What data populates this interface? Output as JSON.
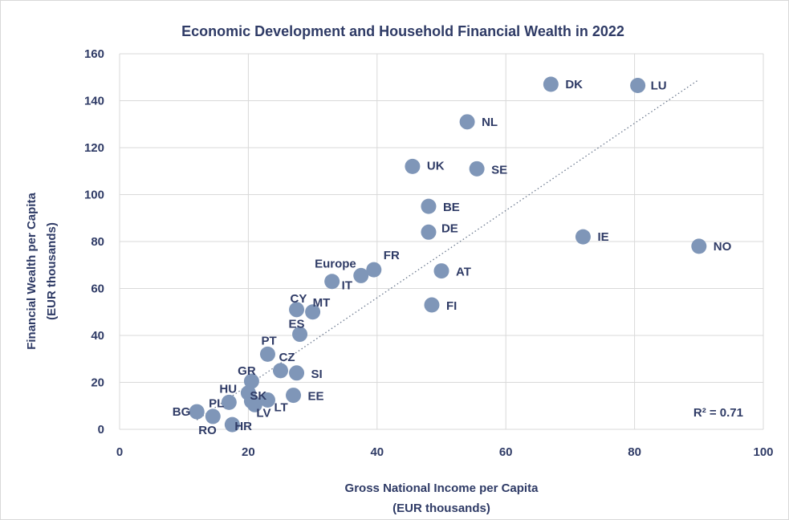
{
  "chart_data": {
    "type": "scatter",
    "title": "Economic Development and Household Financial Wealth in 2022",
    "xlabel": [
      "Gross National Income per Capita",
      "(EUR thousands)"
    ],
    "ylabel": [
      "Financial Wealth per Capita",
      "(EUR thousands)"
    ],
    "xlim": [
      0,
      100
    ],
    "ylim": [
      0,
      160
    ],
    "xticks": [
      0,
      20,
      40,
      60,
      80,
      100
    ],
    "yticks": [
      0,
      20,
      40,
      60,
      80,
      100,
      120,
      140,
      160
    ],
    "grid": true,
    "marker_color": "#7f96b8",
    "text_color": "#2f3b66",
    "trendline": {
      "style": "dotted",
      "x": [
        12,
        90
      ],
      "y": [
        4,
        149
      ]
    },
    "annotation": "R² = 0.71",
    "points": [
      {
        "label": "DK",
        "x": 67,
        "y": 147
      },
      {
        "label": "LU",
        "x": 80.5,
        "y": 146.5
      },
      {
        "label": "NL",
        "x": 54,
        "y": 131
      },
      {
        "label": "UK",
        "x": 45.5,
        "y": 112
      },
      {
        "label": "SE",
        "x": 55.5,
        "y": 111
      },
      {
        "label": "BE",
        "x": 48,
        "y": 95
      },
      {
        "label": "DE",
        "x": 48,
        "y": 84
      },
      {
        "label": "IE",
        "x": 72,
        "y": 82
      },
      {
        "label": "NO",
        "x": 90,
        "y": 78
      },
      {
        "label": "FR",
        "x": 39.5,
        "y": 68
      },
      {
        "label": "Europe",
        "x": 37.5,
        "y": 65.5
      },
      {
        "label": "AT",
        "x": 50,
        "y": 67.5
      },
      {
        "label": "IT",
        "x": 33,
        "y": 63
      },
      {
        "label": "FI",
        "x": 48.5,
        "y": 53
      },
      {
        "label": "CY",
        "x": 27.5,
        "y": 51
      },
      {
        "label": "MT",
        "x": 30,
        "y": 50
      },
      {
        "label": "ES",
        "x": 28,
        "y": 40.5
      },
      {
        "label": "PT",
        "x": 23,
        "y": 32
      },
      {
        "label": "CZ",
        "x": 25,
        "y": 25
      },
      {
        "label": "SI",
        "x": 27.5,
        "y": 24
      },
      {
        "label": "GR",
        "x": 20.5,
        "y": 20.5
      },
      {
        "label": "HU",
        "x": 20,
        "y": 15.5
      },
      {
        "label": "EE",
        "x": 27,
        "y": 14.5
      },
      {
        "label": "SK",
        "x": 20.5,
        "y": 12
      },
      {
        "label": "LT",
        "x": 23,
        "y": 12.5
      },
      {
        "label": "LV",
        "x": 21,
        "y": 10.5
      },
      {
        "label": "PL",
        "x": 17,
        "y": 11.5
      },
      {
        "label": "BG",
        "x": 12,
        "y": 7.5
      },
      {
        "label": "RO",
        "x": 14.5,
        "y": 5.5
      },
      {
        "label": "HR",
        "x": 17.5,
        "y": 2
      }
    ]
  }
}
